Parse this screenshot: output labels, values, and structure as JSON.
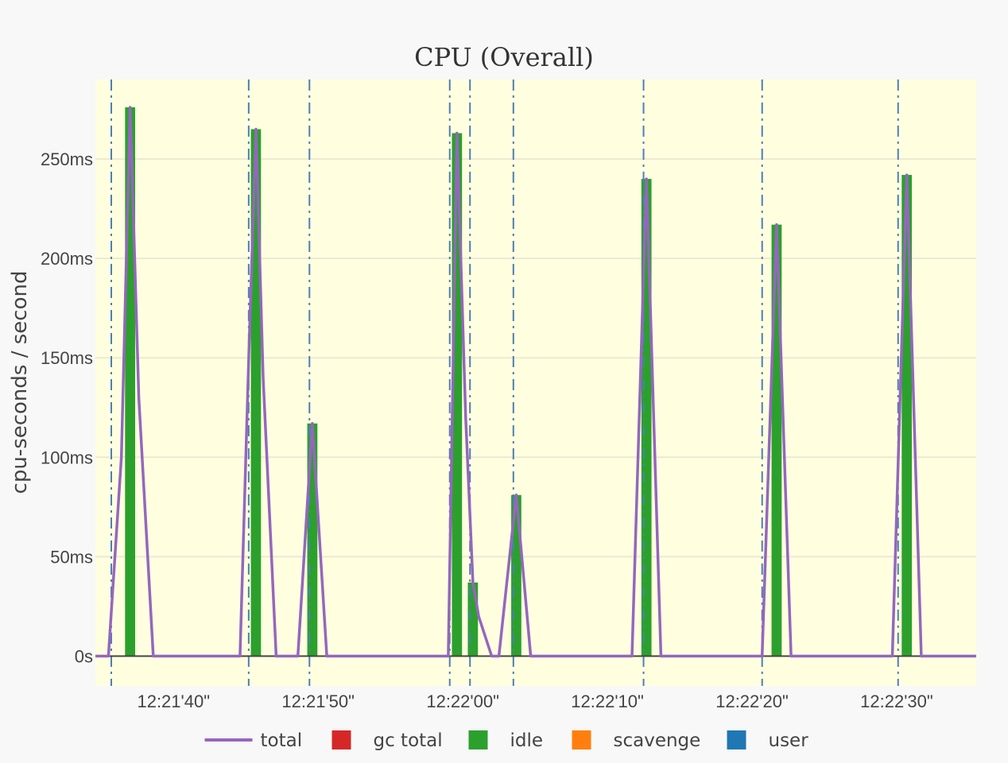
{
  "chart_data": {
    "type": "bar",
    "title": "CPU (Overall)",
    "xlabel": "",
    "ylabel": "cpu-seconds / second",
    "y_unit": "ms",
    "ylim": [
      -15,
      290
    ],
    "y_ticks": [
      0,
      50,
      100,
      150,
      200,
      250
    ],
    "y_tick_labels": [
      "0s",
      "50ms",
      "100ms",
      "150ms",
      "200ms",
      "250ms"
    ],
    "xlim_seconds_after_12_21_30": [
      4.6,
      65.5
    ],
    "x_ticks_seconds_after_12_21_30": [
      10,
      20,
      30,
      40,
      50,
      60
    ],
    "x_tick_labels": [
      "12:21'40\"",
      "12:21'50\"",
      "12:22'00\"",
      "12:22'10\"",
      "12:22'20\"",
      "12:22'30\""
    ],
    "gc_event_lines_seconds_after_12_21_30": [
      5.7,
      15.2,
      19.4,
      29.1,
      30.5,
      33.5,
      42.5,
      50.7,
      60.1
    ],
    "bar_width_seconds": 0.7,
    "series": [
      {
        "name": "idle",
        "kind": "bar",
        "color": "#2ca02c",
        "x": [
          7.0,
          15.7,
          19.6,
          29.6,
          30.7,
          33.7,
          42.7,
          51.7,
          60.7
        ],
        "values": [
          276,
          265,
          117,
          263,
          37,
          81,
          240,
          217,
          242
        ]
      },
      {
        "name": "total",
        "kind": "line",
        "color": "#9467bd",
        "x": [
          4.6,
          5.5,
          6.4,
          7.0,
          7.6,
          8.6,
          9.5,
          14.6,
          15.2,
          15.7,
          16.2,
          17.1,
          18.6,
          19.6,
          20.6,
          29.0,
          29.6,
          30.2,
          30.7,
          31.1,
          32.0,
          32.5,
          33.7,
          34.7,
          41.7,
          42.7,
          43.7,
          50.7,
          51.7,
          52.7,
          59.7,
          60.7,
          61.7,
          65.5
        ],
        "values": [
          0,
          0,
          100,
          276,
          130,
          0,
          0,
          0,
          150,
          265,
          140,
          0,
          0,
          117,
          0,
          0,
          263,
          120,
          37,
          20,
          0,
          0,
          81,
          0,
          0,
          240,
          0,
          0,
          217,
          0,
          0,
          242,
          0,
          0
        ]
      }
    ],
    "legend": {
      "placement": "bottom-center",
      "entries": [
        {
          "name": "total",
          "color": "#9467bd",
          "symbol": "line"
        },
        {
          "name": "gc total",
          "color": "#d62728",
          "symbol": "square"
        },
        {
          "name": "idle",
          "color": "#2ca02c",
          "symbol": "square"
        },
        {
          "name": "scavenge",
          "color": "#ff7f0e",
          "symbol": "square"
        },
        {
          "name": "user",
          "color": "#1f77b4",
          "symbol": "square"
        }
      ]
    },
    "grid": true,
    "colors": {
      "plot_background": "#ffffe0",
      "page_background": "#f8f8f8",
      "gridline": "#ece9d4",
      "event_line": "#4d7fb3",
      "zero_line": "#444444"
    }
  }
}
